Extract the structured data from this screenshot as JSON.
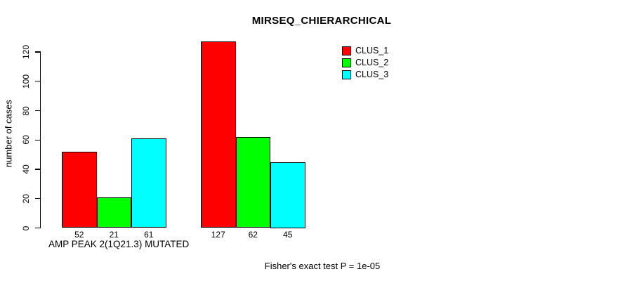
{
  "chart_data": {
    "type": "bar",
    "title": "MIRSEQ_CHIERARCHICAL",
    "ylabel": "number of cases",
    "xlabel": "AMP PEAK 2(1Q21.3) MUTATED",
    "footnote": "Fisher's exact test P = 1e-05",
    "ylim": [
      0,
      120
    ],
    "yticks": [
      0,
      20,
      40,
      60,
      80,
      100,
      120
    ],
    "grid": false,
    "legend_position": "top-right",
    "series": [
      {
        "name": "CLUS_1",
        "color": "#ff0000"
      },
      {
        "name": "CLUS_2",
        "color": "#00ff00"
      },
      {
        "name": "CLUS_3",
        "color": "#00ffff"
      }
    ],
    "groups": [
      {
        "bar_labels": [
          "52",
          "21",
          "61"
        ],
        "values": [
          52,
          21,
          61
        ]
      },
      {
        "bar_labels": [
          "127",
          "62",
          "45"
        ],
        "values": [
          127,
          62,
          45
        ]
      }
    ]
  }
}
